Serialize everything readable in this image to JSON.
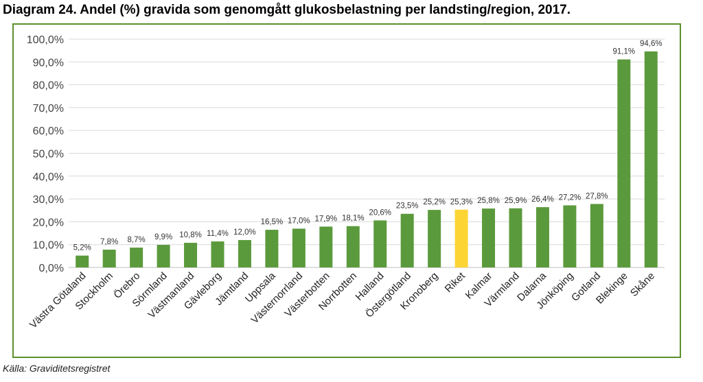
{
  "title": "Diagram 24. Andel (%) gravida som genomgått glukosbelastning per landsting/region, 2017.",
  "source": "Källa: Graviditetsregistret",
  "colors": {
    "bar": "#5b9a3c",
    "highlight": "#fcd535",
    "frame": "#5b8f2b",
    "grid": "#d9d9d9"
  },
  "chart_data": {
    "type": "bar",
    "title": "Diagram 24. Andel (%) gravida som genomgått glukosbelastning per landsting/region, 2017.",
    "xlabel": "",
    "ylabel": "",
    "ylim": [
      0,
      100
    ],
    "yticks": [
      "0,0%",
      "10,0%",
      "20,0%",
      "30,0%",
      "40,0%",
      "50,0%",
      "60,0%",
      "70,0%",
      "80,0%",
      "90,0%",
      "100,0%"
    ],
    "grid": true,
    "legend": "none",
    "categories": [
      "Västra Götaland",
      "Stockholm",
      "Örebro",
      "Sörmland",
      "Västmanland",
      "Gävleborg",
      "Jämtland",
      "Uppsala",
      "Västernorrland",
      "Västerbotten",
      "Norrbotten",
      "Halland",
      "Östergötland",
      "Kronoberg",
      "Riket",
      "Kalmar",
      "Värmland",
      "Dalarna",
      "Jönköping",
      "Gotland",
      "Blekinge",
      "Skåne"
    ],
    "values": [
      5.2,
      7.8,
      8.7,
      9.9,
      10.8,
      11.4,
      12.0,
      16.5,
      17.0,
      17.9,
      18.1,
      20.6,
      23.5,
      25.2,
      25.3,
      25.8,
      25.9,
      26.4,
      27.2,
      27.8,
      91.1,
      94.6
    ],
    "value_labels": [
      "5,2%",
      "7,8%",
      "8,7%",
      "9,9%",
      "10,8%",
      "11,4%",
      "12,0%",
      "16,5%",
      "17,0%",
      "17,9%",
      "18,1%",
      "20,6%",
      "23,5%",
      "25,2%",
      "25,3%",
      "25,8%",
      "25,9%",
      "26,4%",
      "27,2%",
      "27,8%",
      "91,1%",
      "94,6%"
    ],
    "highlight_category": "Riket"
  }
}
